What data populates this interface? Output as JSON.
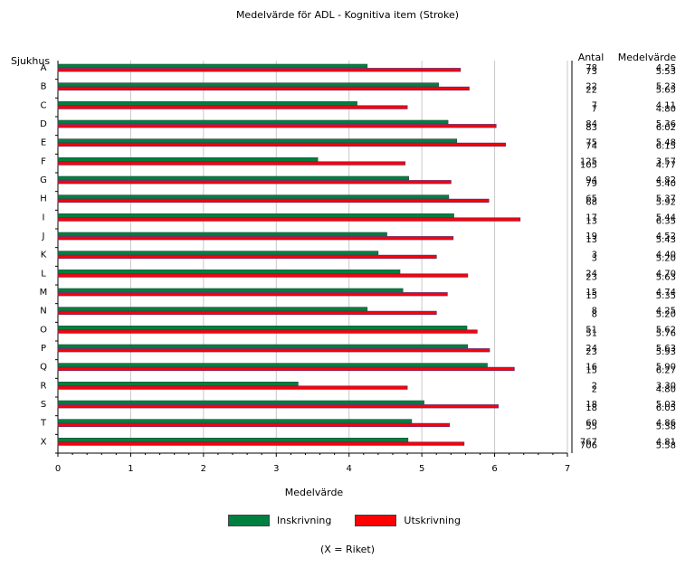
{
  "chart_data": {
    "type": "bar",
    "orientation": "horizontal",
    "title": "Medelvärde för ADL - Kognitiva item (Stroke)",
    "category_axis_label": "Sjukhus",
    "xlabel": "Medelvärde",
    "xlim": [
      0,
      7
    ],
    "xticks": [
      "0",
      "1",
      "2",
      "3",
      "4",
      "5",
      "6",
      "7"
    ],
    "grid": true,
    "legend_position": "bottom",
    "footnote": "(X = Riket)",
    "table_headers": {
      "antal": "Antal",
      "medelvarde": "Medelvärde"
    },
    "categories": [
      "A",
      "B",
      "C",
      "D",
      "E",
      "F",
      "G",
      "H",
      "I",
      "J",
      "K",
      "L",
      "M",
      "N",
      "O",
      "P",
      "Q",
      "R",
      "S",
      "T",
      "X"
    ],
    "series": [
      {
        "name": "Inskrivning",
        "color": "#008040",
        "values": [
          4.25,
          5.23,
          4.11,
          5.36,
          5.48,
          3.57,
          4.82,
          5.37,
          5.44,
          4.52,
          4.4,
          4.7,
          4.74,
          4.25,
          5.62,
          5.63,
          5.9,
          3.3,
          5.03,
          4.86,
          4.81
        ],
        "antal": [
          "78",
          "22",
          "7",
          "84",
          "75",
          "125",
          "94",
          "65",
          "17",
          "19",
          "3",
          "24",
          "15",
          "8",
          "51",
          "24",
          "16",
          "2",
          "18",
          "60",
          "767"
        ],
        "medelvarde": [
          "4.25",
          "5.23",
          "4.11",
          "5.36",
          "5.48",
          "3.57",
          "4.82",
          "5.37",
          "5.44",
          "4.52",
          "4.40",
          "4.70",
          "4.74",
          "4.25",
          "5.62",
          "5.63",
          "5.90",
          "3.30",
          "5.03",
          "4.86",
          "4.81"
        ]
      },
      {
        "name": "Utskrivning",
        "color": "#ff0000",
        "values": [
          5.53,
          5.65,
          4.8,
          6.02,
          6.15,
          4.77,
          5.4,
          5.92,
          6.35,
          5.43,
          5.2,
          5.63,
          5.35,
          5.2,
          5.76,
          5.93,
          6.27,
          4.8,
          6.05,
          5.38,
          5.58
        ],
        "antal": [
          "73",
          "22",
          "7",
          "83",
          "74",
          "105",
          "79",
          "68",
          "13",
          "13",
          "3",
          "23",
          "15",
          "8",
          "51",
          "23",
          "15",
          "2",
          "18",
          "55",
          "706"
        ],
        "medelvarde": [
          "5.53",
          "5.65",
          "4.80",
          "6.02",
          "6.15",
          "4.77",
          "5.40",
          "5.92",
          "6.35",
          "5.43",
          "5.20",
          "5.63",
          "5.35",
          "5.20",
          "5.76",
          "5.93",
          "6.27",
          "4.80",
          "6.05",
          "5.38",
          "5.58"
        ]
      }
    ]
  }
}
